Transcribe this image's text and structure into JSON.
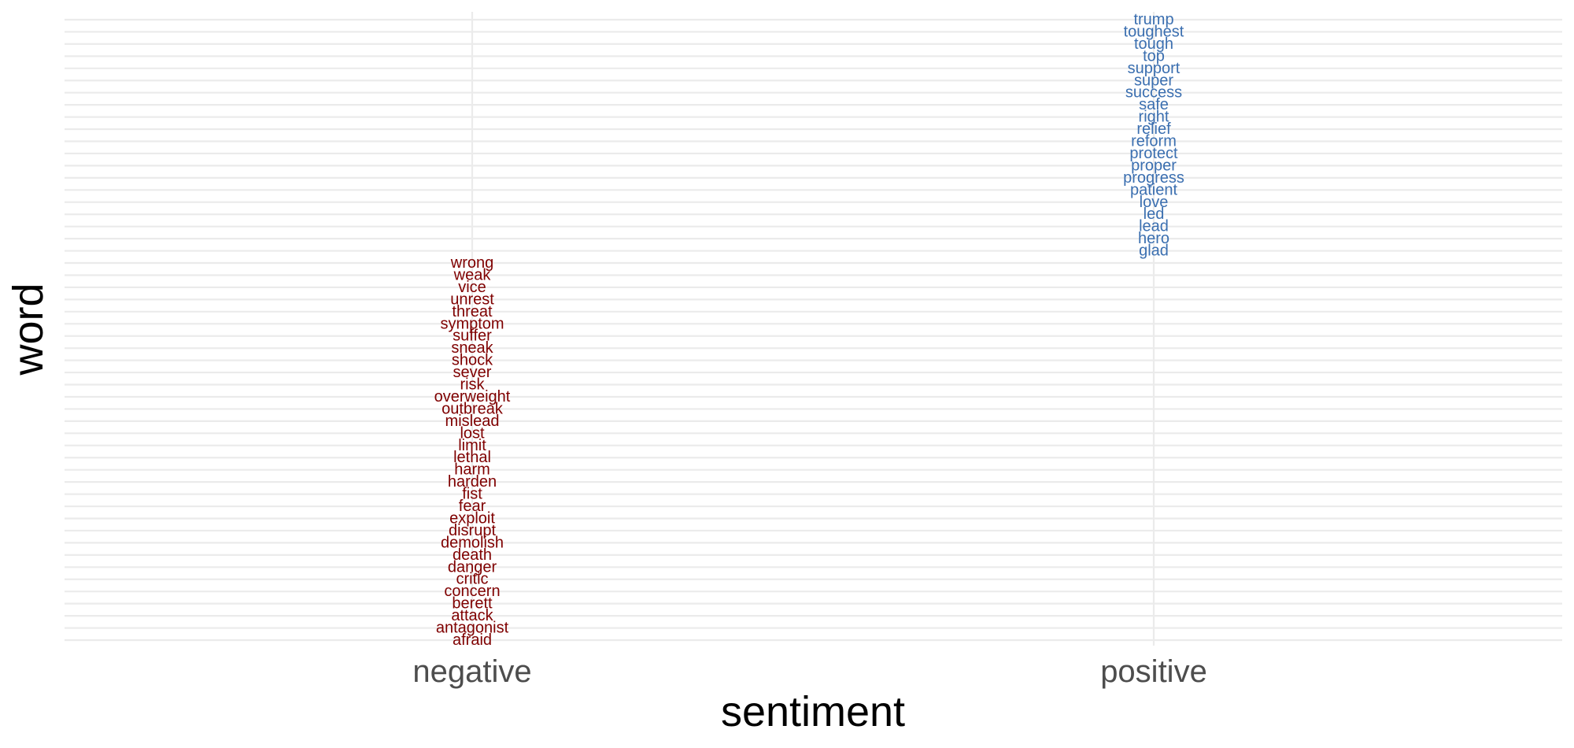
{
  "chart_data": {
    "type": "scatter",
    "mark": "text",
    "xlabel": "sentiment",
    "ylabel": "word",
    "categories": [
      "negative",
      "positive"
    ],
    "grid": true,
    "legend": "none",
    "series": [
      {
        "category": "negative",
        "color": "#7f0000",
        "words": [
          "afraid",
          "antagonist",
          "attack",
          "berett",
          "concern",
          "critic",
          "danger",
          "death",
          "demolish",
          "disrupt",
          "exploit",
          "fear",
          "fist",
          "harden",
          "harm",
          "lethal",
          "limit",
          "lost",
          "mislead",
          "outbreak",
          "overweight",
          "risk",
          "sever",
          "shock",
          "sneak",
          "suffer",
          "symptom",
          "threat",
          "unrest",
          "vice",
          "weak",
          "wrong"
        ]
      },
      {
        "category": "positive",
        "color": "#3b6fb0",
        "words": [
          "glad",
          "hero",
          "lead",
          "led",
          "love",
          "patient",
          "progress",
          "proper",
          "protect",
          "reform",
          "relief",
          "right",
          "safe",
          "success",
          "super",
          "support",
          "top",
          "tough",
          "toughest",
          "trump"
        ]
      }
    ]
  }
}
